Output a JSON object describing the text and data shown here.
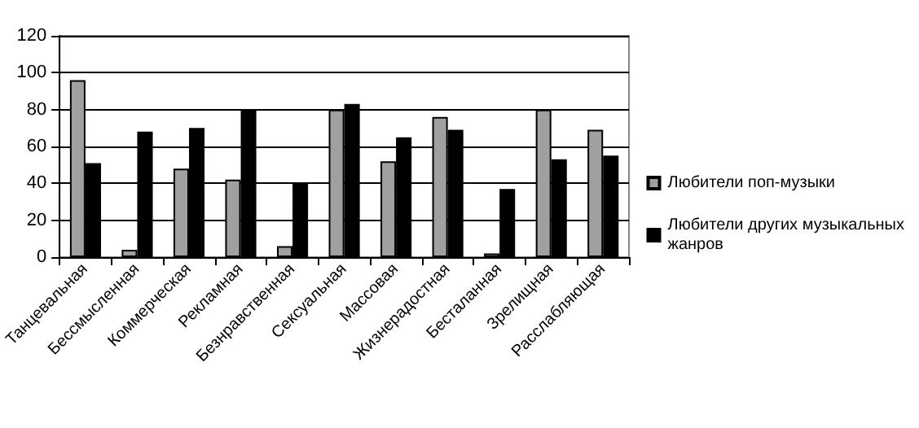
{
  "chart_data": {
    "type": "bar",
    "categories": [
      "Танцевальная",
      "Бессмысленная",
      "Коммерческая",
      "Рекламная",
      "Безнравственная",
      "Сексуальная",
      "Массовая",
      "Жизнерадостная",
      "Бесталанная",
      "Зрелищная",
      "Расслабляющая"
    ],
    "series": [
      {
        "name": "Любители поп-музыки",
        "color": "#a0a0a0",
        "values": [
          96,
          4,
          48,
          42,
          6,
          80,
          52,
          76,
          2,
          80,
          69
        ]
      },
      {
        "name": "Любители других музыкальных жанров",
        "color": "#000000",
        "values": [
          51,
          68,
          70,
          80,
          40,
          83,
          65,
          69,
          37,
          53,
          55
        ]
      }
    ],
    "ylim": [
      0,
      120
    ],
    "yticks": [
      0,
      20,
      40,
      60,
      80,
      100,
      120
    ],
    "grid": "y",
    "legend": "right"
  }
}
